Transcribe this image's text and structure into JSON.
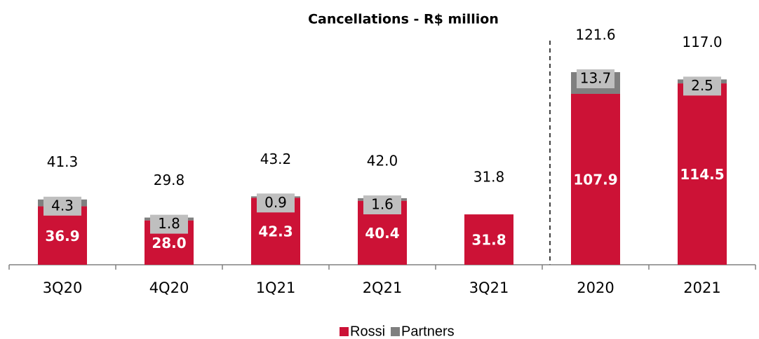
{
  "chart_data": {
    "type": "stacked-bar",
    "title": "Cancellations - R$ million",
    "categories": [
      "3Q20",
      "4Q20",
      "1Q21",
      "2Q21",
      "3Q21",
      "2020",
      "2021"
    ],
    "series": [
      {
        "name": "Rossi",
        "color": "#cc1236",
        "values": [
          36.9,
          28.0,
          42.3,
          40.4,
          31.8,
          107.9,
          114.5
        ],
        "value_labels": [
          "36.9",
          "28.0",
          "42.3",
          "40.4",
          "31.8",
          "107.9",
          "114.5"
        ]
      },
      {
        "name": "Partners",
        "color": "#7f7f7f",
        "values": [
          4.3,
          1.8,
          0.9,
          1.6,
          null,
          13.7,
          2.5
        ],
        "value_labels": [
          "4.3",
          "1.8",
          "0.9",
          "1.6",
          null,
          "13.7",
          "2.5"
        ]
      }
    ],
    "totals": {
      "values": [
        41.3,
        29.8,
        43.2,
        42.0,
        31.8,
        121.6,
        117.0
      ],
      "value_labels": [
        "41.3",
        "29.8",
        "43.2",
        "42.0",
        "31.8",
        "121.6",
        "117.0"
      ]
    },
    "legend": "bottom"
  }
}
